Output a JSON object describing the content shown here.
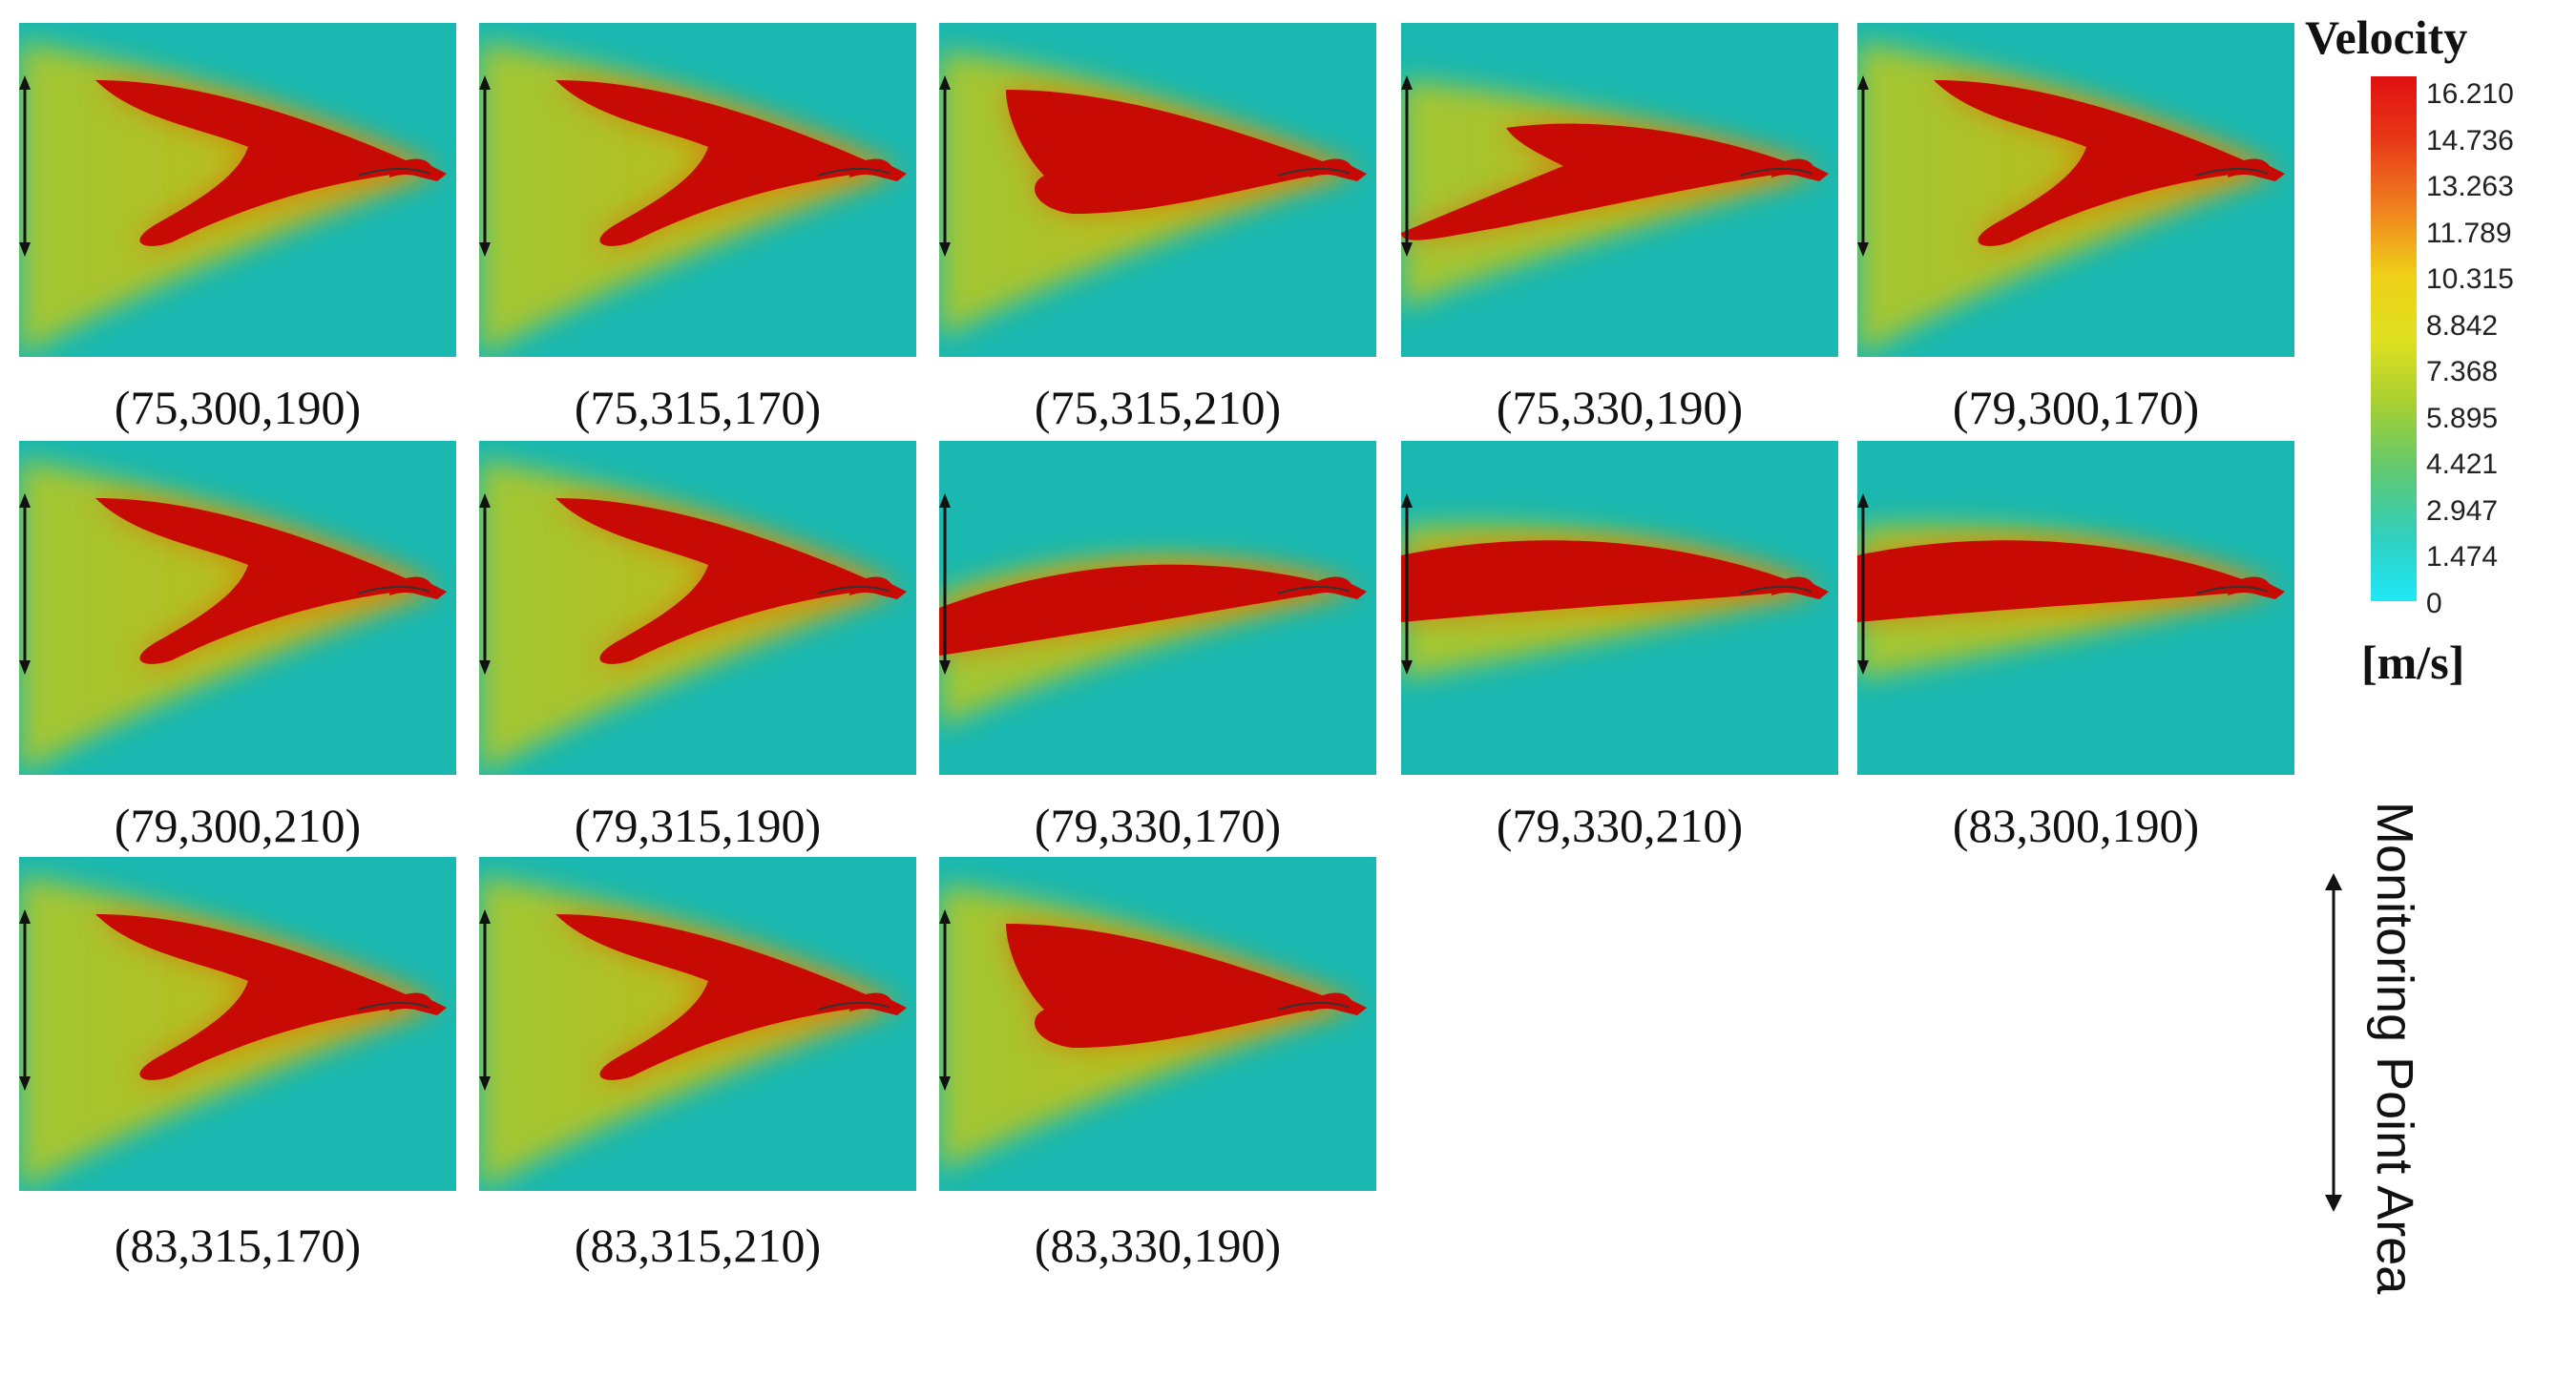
{
  "panels": [
    {
      "label": "(75,300,190)",
      "shape": "fork"
    },
    {
      "label": "(75,315,170)",
      "shape": "fork"
    },
    {
      "label": "(75,315,210)",
      "shape": "wide"
    },
    {
      "label": "(75,330,190)",
      "shape": "low-fork"
    },
    {
      "label": "(79,300,170)",
      "shape": "fork"
    },
    {
      "label": "(79,300,210)",
      "shape": "fork"
    },
    {
      "label": "(79,315,190)",
      "shape": "fork"
    },
    {
      "label": "(79,330,170)",
      "shape": "low-wedge"
    },
    {
      "label": "(79,330,210)",
      "shape": "mid-wedge"
    },
    {
      "label": "(83,300,190)",
      "shape": "mid-wedge"
    },
    {
      "label": "(83,315,170)",
      "shape": "fork"
    },
    {
      "label": "(83,315,210)",
      "shape": "fork"
    },
    {
      "label": "(83,330,190)",
      "shape": "wide"
    }
  ],
  "legend": {
    "title": "Velocity",
    "unit": "[m/s]",
    "ticks": [
      "16.210",
      "14.736",
      "13.263",
      "11.789",
      "10.315",
      "8.842",
      "7.368",
      "5.895",
      "4.421",
      "2.947",
      "1.474",
      "0"
    ],
    "colors": {
      "max": "#e01010",
      "high": "#f07018",
      "mid_high": "#f0e010",
      "mid": "#a8d030",
      "mid_low": "#50c888",
      "min": "#20e0f0"
    }
  },
  "monitoring_label": "Monitoring Point Area",
  "colors": {
    "background": "#1ab8b0",
    "jet_core": "#c80a05",
    "jet_edge": "#b8c020"
  }
}
